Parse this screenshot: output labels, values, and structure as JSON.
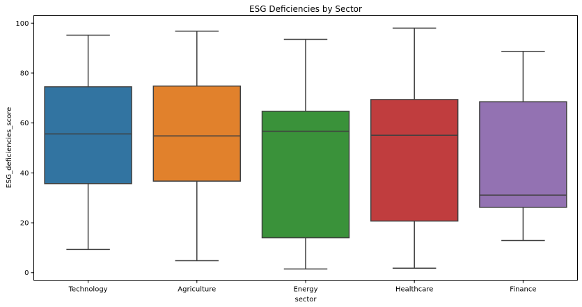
{
  "chart_data": {
    "type": "box",
    "title": "ESG Deficiencies by Sector",
    "xlabel": "sector",
    "ylabel": "ESG_deficiencies_score",
    "ylim": [
      -3,
      103
    ],
    "yticks": [
      0,
      20,
      40,
      60,
      80,
      100
    ],
    "grid": false,
    "categories": [
      "Technology",
      "Agriculture",
      "Energy",
      "Healthcare",
      "Finance"
    ],
    "series": [
      {
        "category": "Technology",
        "whisker_low": 9.3,
        "q1": 35.7,
        "median": 55.6,
        "q3": 74.5,
        "whisker_high": 95.2,
        "color": "#3274a1"
      },
      {
        "category": "Agriculture",
        "whisker_low": 4.8,
        "q1": 36.7,
        "median": 54.8,
        "q3": 74.8,
        "whisker_high": 96.8,
        "color": "#e1812c"
      },
      {
        "category": "Energy",
        "whisker_low": 1.5,
        "q1": 14.0,
        "median": 56.7,
        "q3": 64.7,
        "whisker_high": 93.5,
        "color": "#3a923a"
      },
      {
        "category": "Healthcare",
        "whisker_low": 1.8,
        "q1": 20.7,
        "median": 55.1,
        "q3": 69.4,
        "whisker_high": 98.0,
        "color": "#c03d3e"
      },
      {
        "category": "Finance",
        "whisker_low": 12.9,
        "q1": 26.2,
        "median": 31.1,
        "q3": 68.5,
        "whisker_high": 88.7,
        "color": "#9372b2"
      }
    ]
  }
}
